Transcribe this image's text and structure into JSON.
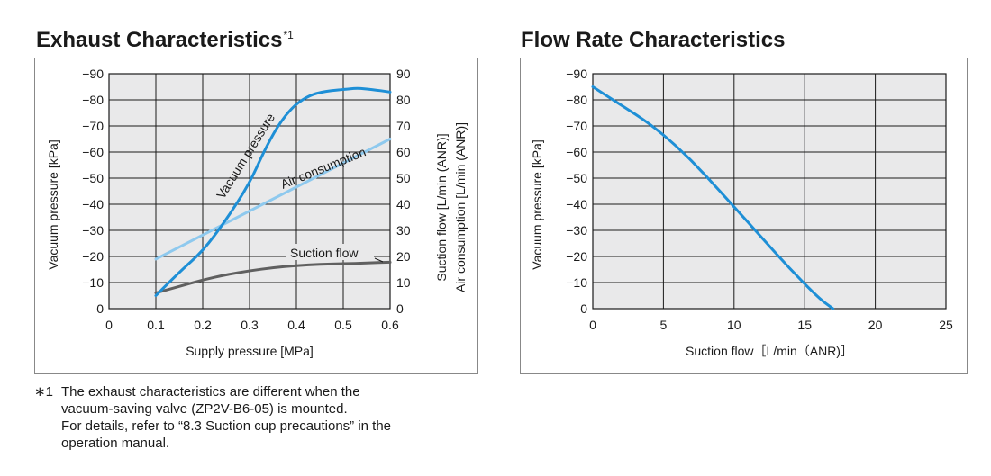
{
  "chart_data": [
    {
      "type": "line",
      "title": "Exhaust Characteristics",
      "title_note": "*1",
      "xlabel": "Supply pressure [MPa]",
      "ylabel": "Vacuum pressure [kPa]",
      "y2label": "Suction flow [L/min (ANR)]",
      "y3label": "Air consumption [L/min (ANR)]",
      "xlim": [
        0,
        0.6
      ],
      "ylim": [
        0,
        -90
      ],
      "y2lim": [
        0,
        90
      ],
      "x_ticks": [
        "0",
        "0.1",
        "0.2",
        "0.3",
        "0.4",
        "0.5",
        "0.6"
      ],
      "y_ticks": [
        "0",
        "−10",
        "−20",
        "−30",
        "−40",
        "−50",
        "−60",
        "−70",
        "−80",
        "−90"
      ],
      "y2_ticks": [
        "0",
        "10",
        "20",
        "30",
        "40",
        "50",
        "60",
        "70",
        "80",
        "90"
      ],
      "grid": true,
      "series": [
        {
          "name": "Vacuum pressure",
          "color": "#1e8fd6",
          "axis": "left",
          "x": [
            0.1,
            0.15,
            0.2,
            0.25,
            0.3,
            0.33,
            0.36,
            0.39,
            0.42,
            0.45,
            0.5,
            0.53,
            0.56,
            0.6
          ],
          "y": [
            -5,
            -14,
            -22,
            -34,
            -48,
            -60,
            -70,
            -77,
            -81,
            -83,
            -84,
            -84.5,
            -84,
            -83
          ]
        },
        {
          "name": "Air consumption",
          "color": "#8ec9ee",
          "axis": "right",
          "x": [
            0.1,
            0.6
          ],
          "y": [
            19,
            65
          ]
        },
        {
          "name": "Suction flow",
          "color": "#606060",
          "axis": "right",
          "x": [
            0.1,
            0.15,
            0.2,
            0.25,
            0.3,
            0.35,
            0.4,
            0.45,
            0.5,
            0.55,
            0.6
          ],
          "y": [
            6,
            8.5,
            11,
            13,
            14.5,
            15.7,
            16.5,
            17,
            17.2,
            17.5,
            17.8
          ]
        }
      ]
    },
    {
      "type": "line",
      "title": "Flow Rate Characteristics",
      "xlabel": "Suction flow［L/min（ANR)］",
      "ylabel": "Vacuum pressure [kPa]",
      "xlim": [
        0,
        25
      ],
      "ylim": [
        0,
        -90
      ],
      "x_ticks": [
        "0",
        "5",
        "10",
        "15",
        "20",
        "25"
      ],
      "y_ticks": [
        "0",
        "−10",
        "−20",
        "−30",
        "−40",
        "−50",
        "−60",
        "−70",
        "−80",
        "−90"
      ],
      "grid": true,
      "series": [
        {
          "color": "#1e8fd6",
          "x": [
            0,
            2,
            4,
            6,
            8,
            10,
            12,
            14,
            16,
            17
          ],
          "y": [
            -85,
            -78,
            -71,
            -62,
            -51,
            -39,
            -27,
            -15,
            -4,
            0
          ]
        }
      ]
    }
  ],
  "footnote": {
    "mark": "∗1",
    "lines": [
      "The exhaust characteristics are different when the",
      "vacuum-saving valve (ZP2V-B6-05) is mounted.",
      "For details, refer to “8.3 Suction cup precautions” in the",
      "operation manual."
    ]
  }
}
